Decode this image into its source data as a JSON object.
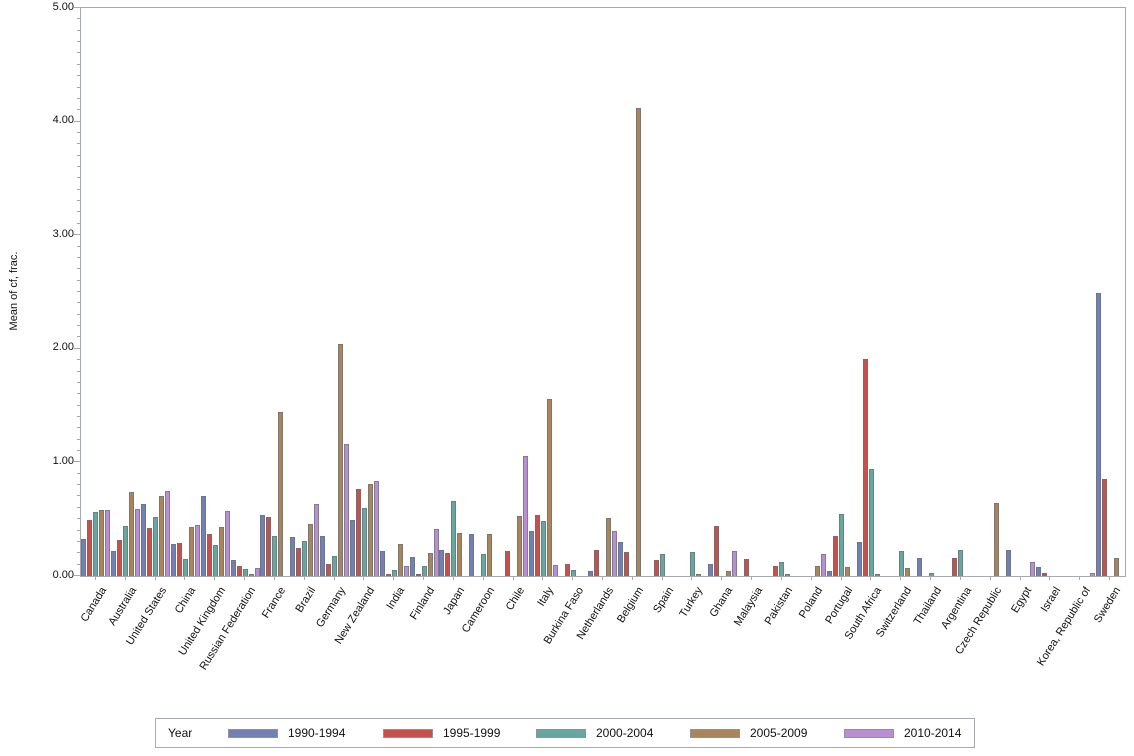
{
  "figure": {
    "background": "#ffffff",
    "frame_color": "#a4aaae"
  },
  "y_axis": {
    "title": "Mean of cf, frac.",
    "min": 0,
    "max": 5,
    "major_step": 1,
    "minor_step": 0.1,
    "tick_labels": [
      "0.00",
      "1.00",
      "2.00",
      "3.00",
      "4.00",
      "5.00"
    ]
  },
  "legend": {
    "title": "Year",
    "entries": [
      {
        "label": "1990-1994",
        "color": "#7280b4"
      },
      {
        "label": "1995-1999",
        "color": "#c5504e"
      },
      {
        "label": "2000-2004",
        "color": "#68a79f"
      },
      {
        "label": "2005-2009",
        "color": "#a9855d"
      },
      {
        "label": "2010-2014",
        "color": "#b88fd1"
      }
    ]
  },
  "chart_data": {
    "type": "bar",
    "title": "",
    "xlabel": "",
    "ylabel": "Mean of cf, frac.",
    "ylim": [
      0,
      5
    ],
    "grid": false,
    "legend_position": "bottom",
    "categories": [
      "Canada",
      "Australia",
      "United States",
      "China",
      "United Kingdom",
      "Russian Federation",
      "France",
      "Brazil",
      "Germany",
      "New Zealand",
      "India",
      "Finland",
      "Japan",
      "Cameroon",
      "Chile",
      "Italy",
      "Burkina Faso",
      "Netherlands",
      "Belgium",
      "Spain",
      "Turkey",
      "Ghana",
      "Malaysia",
      "Pakistan",
      "Poland",
      "Portugal",
      "South Africa",
      "Switzerland",
      "Thailand",
      "Argentina",
      "Czech Republic",
      "Egypt",
      "Israel",
      "Korea, Republic of",
      "Sweden"
    ],
    "series": [
      {
        "name": "1990-1994",
        "color": "#7280b4",
        "values": [
          0.33,
          0.22,
          0.63,
          0.28,
          0.7,
          0.14,
          0.54,
          0.34,
          0.35,
          0.49,
          0.22,
          0.17,
          0.23,
          0.37,
          0,
          0.4,
          0,
          0.04,
          0.3,
          0,
          0,
          0.11,
          0,
          0,
          0,
          0.04,
          0.3,
          0,
          0.16,
          0,
          0,
          0.23,
          0.08,
          0,
          2.49
        ]
      },
      {
        "name": "1995-1999",
        "color": "#c5504e",
        "values": [
          0.49,
          0.32,
          0.42,
          0.29,
          0.37,
          0.09,
          0.52,
          0.25,
          0.11,
          0.77,
          0.02,
          0.02,
          0.2,
          0,
          0.22,
          0.54,
          0.11,
          0.23,
          0.21,
          0.14,
          0,
          0.44,
          0.15,
          0.09,
          0,
          0.35,
          1.91,
          0,
          0,
          0.16,
          0,
          0,
          0.03,
          0,
          0.85
        ]
      },
      {
        "name": "2000-2004",
        "color": "#68a79f",
        "values": [
          0.56,
          0.44,
          0.52,
          0.15,
          0.27,
          0.06,
          0.35,
          0.31,
          0.18,
          0.6,
          0.05,
          0.09,
          0.66,
          0.19,
          0,
          0.48,
          0.05,
          0,
          0,
          0.19,
          0.21,
          0,
          0,
          0.12,
          0,
          0.55,
          0.94,
          0.22,
          0.03,
          0.23,
          0,
          0,
          0,
          0,
          0
        ]
      },
      {
        "name": "2005-2009",
        "color": "#a9855d",
        "values": [
          0.58,
          0.74,
          0.7,
          0.43,
          0.43,
          0.02,
          1.44,
          0.46,
          2.04,
          0.81,
          0.28,
          0.2,
          0.38,
          0.37,
          0.53,
          1.56,
          0,
          0.51,
          4.12,
          0,
          0.02,
          0.04,
          0,
          0.02,
          0.09,
          0.08,
          0.02,
          0.07,
          0,
          0,
          0.64,
          0,
          0,
          0,
          0.16
        ]
      },
      {
        "name": "2010-2014",
        "color": "#b88fd1",
        "values": [
          0.58,
          0.59,
          0.75,
          0.45,
          0.57,
          0.07,
          0,
          0.63,
          1.16,
          0.84,
          0.09,
          0.41,
          0,
          0,
          1.06,
          0.1,
          0,
          0.4,
          0,
          0,
          0,
          0.22,
          0,
          0,
          0.19,
          0,
          0,
          0,
          0,
          0,
          0,
          0.12,
          0,
          0.03,
          0
        ]
      }
    ]
  }
}
